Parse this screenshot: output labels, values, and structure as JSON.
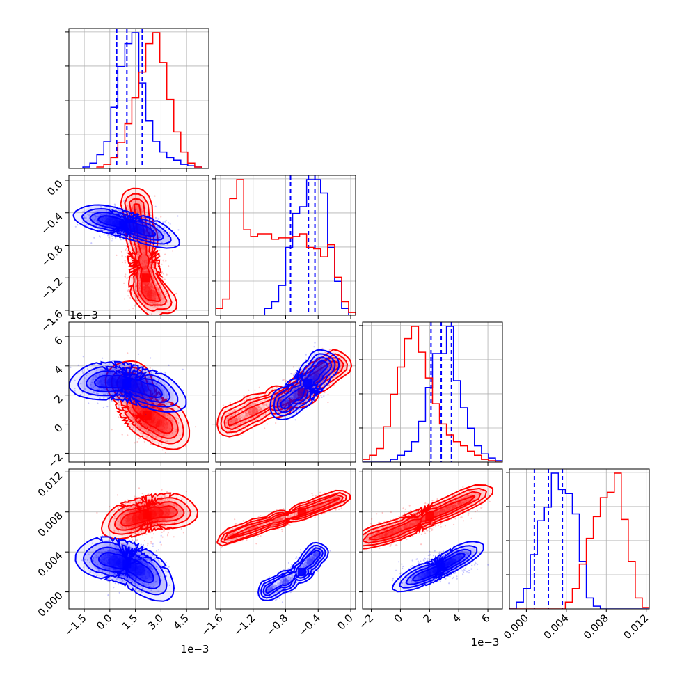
{
  "figure": {
    "type": "corner-plot",
    "background": "#ffffff",
    "colors": {
      "series_a": "#0000ff",
      "series_b": "#ff0000",
      "grid": "#b0b0b0"
    }
  },
  "chart_data": {
    "type": "corner",
    "n_params": 4,
    "params": [
      {
        "range": [
          -2.4,
          5.8
        ],
        "offset_label": "1e−3",
        "ticks": [
          -1.5,
          0.0,
          1.5,
          3.0,
          4.5
        ],
        "tick_labels": [
          "−1.5",
          "0.0",
          "1.5",
          "3.0",
          "4.5"
        ]
      },
      {
        "range": [
          -1.66,
          0.06
        ],
        "offset_label": "1e−3",
        "ticks": [
          -1.6,
          -1.2,
          -0.8,
          -0.4,
          0.0
        ],
        "tick_labels": [
          "−1.6",
          "−1.2",
          "−0.8",
          "−0.4",
          "0.0"
        ]
      },
      {
        "range": [
          -2.6,
          7.0
        ],
        "offset_label": "1e−3",
        "ticks": [
          -2,
          0,
          2,
          4,
          6
        ],
        "tick_labels": [
          "−2",
          "0",
          "2",
          "4",
          "6"
        ]
      },
      {
        "range": [
          -0.0017,
          0.0123
        ],
        "offset_label": "",
        "ticks": [
          0.0,
          0.004,
          0.008,
          0.012
        ],
        "tick_labels": [
          "0.000",
          "0.004",
          "0.008",
          "0.012"
        ]
      }
    ],
    "series": [
      {
        "color": "#0000ff",
        "quantiles": [
          [
            0.4,
            1.0,
            1.9
          ],
          [
            -0.74,
            -0.52,
            -0.44
          ],
          [
            2.1,
            2.8,
            3.5
          ],
          [
            0.0008,
            0.0022,
            0.0036
          ]
        ],
        "hists": [
          {
            "edges_from": -2.4,
            "edges_to": 5.8,
            "counts": [
              0,
              0,
              0.01,
              0.04,
              0.1,
              0.2,
              0.45,
              0.75,
              0.92,
              1.0,
              0.63,
              0.35,
              0.2,
              0.12,
              0.08,
              0.06,
              0.03,
              0.02,
              0.01,
              0
            ]
          },
          {
            "edges_from": -1.66,
            "edges_to": 0.06,
            "counts": [
              0,
              0,
              0,
              0,
              0,
              0,
              0,
              0.05,
              0.1,
              0.22,
              0.5,
              0.75,
              0.8,
              1.0,
              1.0,
              0.9,
              0.5,
              0.25,
              0.05,
              0
            ]
          },
          {
            "edges_from": -2.6,
            "edges_to": 7.0,
            "counts": [
              0,
              0,
              0,
              0,
              0.02,
              0.05,
              0.08,
              0.15,
              0.3,
              0.55,
              0.8,
              0.8,
              1.0,
              0.6,
              0.4,
              0.25,
              0.12,
              0.06,
              0.03,
              0.01
            ]
          },
          {
            "edges_from": -0.0017,
            "edges_to": 0.0123,
            "counts": [
              0,
              0.05,
              0.15,
              0.4,
              0.65,
              0.75,
              1.0,
              0.88,
              0.85,
              0.7,
              0.35,
              0.08,
              0.02,
              0,
              0,
              0,
              0,
              0,
              0,
              0
            ]
          }
        ],
        "density": [
          {
            "x": [
              0.0,
              0.4,
              0.8,
              1.4,
              2.0
            ],
            "y": [
              -0.5,
              -0.52,
              -0.55,
              -0.58,
              -0.62
            ]
          },
          {
            "x": [
              -0.2,
              0.5,
              1.0,
              1.6,
              2.4
            ],
            "y": [
              2.9,
              2.9,
              2.8,
              2.6,
              2.3
            ]
          },
          {
            "x": [
              0.0,
              0.5,
              1.0,
              1.5,
              2.0
            ],
            "y": [
              0.0032,
              0.003,
              0.0028,
              0.0024,
              0.0018
            ]
          },
          {
            "x": [
              -0.8,
              -0.65,
              -0.52,
              -0.45,
              -0.35
            ],
            "y": [
              1.4,
              2.0,
              2.8,
              3.3,
              4.0
            ]
          },
          {
            "x": [
              -1.0,
              -0.8,
              -0.6,
              -0.5,
              -0.42
            ],
            "y": [
              0.0002,
              0.001,
              0.002,
              0.003,
              0.0038
            ]
          },
          {
            "x": [
              1.5,
              2.2,
              2.8,
              3.2,
              3.8
            ],
            "y": [
              0.0016,
              0.002,
              0.0025,
              0.0028,
              0.0033
            ]
          }
        ]
      },
      {
        "color": "#ff0000",
        "quantiles": null,
        "hists": [
          {
            "edges_from": -2.4,
            "edges_to": 5.8,
            "counts": [
              0,
              0,
              0,
              0,
              0.01,
              0.03,
              0.08,
              0.19,
              0.33,
              0.52,
              0.71,
              0.92,
              1.0,
              0.78,
              0.51,
              0.27,
              0.12,
              0.04,
              0.01,
              0
            ]
          },
          {
            "edges_from": -1.66,
            "edges_to": 0.06,
            "counts": [
              0.05,
              0.12,
              0.86,
              1.0,
              0.63,
              0.58,
              0.6,
              0.6,
              0.56,
              0.57,
              0.57,
              0.58,
              0.6,
              0.5,
              0.49,
              0.43,
              0.52,
              0.28,
              0.1,
              0.02
            ]
          },
          {
            "edges_from": -2.6,
            "edges_to": 7.0,
            "counts": [
              0.02,
              0.05,
              0.1,
              0.26,
              0.5,
              0.7,
              0.91,
              1.0,
              0.81,
              0.62,
              0.43,
              0.28,
              0.2,
              0.15,
              0.12,
              0.08,
              0.05,
              0.02,
              0.01,
              0
            ]
          },
          {
            "edges_from": -0.0017,
            "edges_to": 0.0123,
            "counts": [
              0,
              0,
              0,
              0,
              0,
              0,
              0,
              0,
              0.05,
              0.15,
              0.33,
              0.52,
              0.68,
              0.82,
              0.86,
              1.0,
              0.66,
              0.35,
              0.08,
              0.01
            ]
          }
        ],
        "density": [
          {
            "x": [
              1.6,
              1.9,
              2.0,
              2.1,
              2.2,
              2.6
            ],
            "y": [
              -0.38,
              -0.75,
              -1.0,
              -1.2,
              -1.38,
              -1.42
            ]
          },
          {
            "x": [
              1.2,
              1.8,
              2.2,
              2.6,
              3.2
            ],
            "y": [
              2.6,
              1.2,
              0.6,
              0.3,
              -0.1
            ]
          },
          {
            "x": [
              1.2,
              1.8,
              2.2,
              2.6,
              3.4
            ],
            "y": [
              0.0072,
              0.0075,
              0.0077,
              0.0079,
              0.008
            ]
          },
          {
            "x": [
              -1.45,
              -1.2,
              -0.9,
              -0.6,
              -0.4,
              -0.2
            ],
            "y": [
              0.2,
              0.9,
              1.5,
              2.2,
              3.2,
              4.0
            ]
          },
          {
            "x": [
              -1.45,
              -1.2,
              -0.9,
              -0.6,
              -0.4,
              -0.2
            ],
            "y": [
              0.0056,
              0.0064,
              0.0072,
              0.008,
              0.0086,
              0.0092
            ]
          },
          {
            "x": [
              -1.5,
              -0.5,
              0.8,
              2.0,
              3.2,
              4.5
            ],
            "y": [
              0.0056,
              0.006,
              0.0068,
              0.0076,
              0.0083,
              0.0092
            ]
          }
        ]
      }
    ],
    "grid": true,
    "legend": "none"
  }
}
